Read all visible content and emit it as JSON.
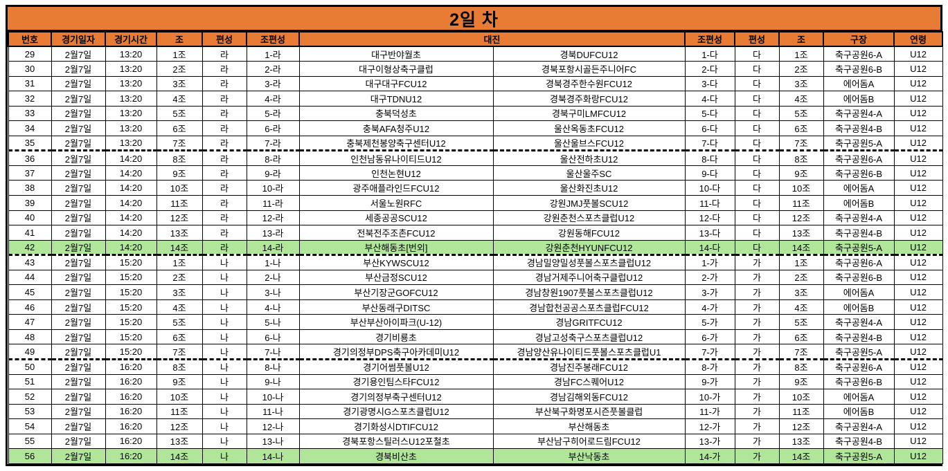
{
  "title": "2일 차",
  "colors": {
    "header_bg": "#E97C35",
    "highlight_bg": "#B1E69A"
  },
  "table": {
    "headers": [
      "번호",
      "경기일자",
      "경기시간",
      "조",
      "편성",
      "조편성",
      "대진",
      "조편성",
      "편성",
      "조",
      "구장",
      "연령"
    ],
    "rows": [
      {
        "no": "29",
        "date": "2월7일",
        "time": "13:20",
        "group_l": "1조",
        "div_l": "라",
        "gd_l": "1-라",
        "home": "대구반야월초",
        "away": "경북DUFCU12",
        "gd_r": "1-다",
        "div_r": "다",
        "group_r": "1조",
        "venue": "축구공원6-A",
        "age": "U12",
        "highlight": false
      },
      {
        "no": "30",
        "date": "2월7일",
        "time": "13:20",
        "group_l": "2조",
        "div_l": "라",
        "gd_l": "2-라",
        "home": "대구이형상축구클럽",
        "away": "경북포항시골든주니어FC",
        "gd_r": "2-다",
        "div_r": "다",
        "group_r": "2조",
        "venue": "축구공원6-B",
        "age": "U12",
        "highlight": false
      },
      {
        "no": "31",
        "date": "2월7일",
        "time": "13:20",
        "group_l": "3조",
        "div_l": "라",
        "gd_l": "3-라",
        "home": "대구대구FCU12",
        "away": "경북경주한수원FCU12",
        "gd_r": "3-다",
        "div_r": "다",
        "group_r": "3조",
        "venue": "에어돔A",
        "age": "U12",
        "highlight": false
      },
      {
        "no": "32",
        "date": "2월7일",
        "time": "13:20",
        "group_l": "4조",
        "div_l": "라",
        "gd_l": "4-라",
        "home": "대구TDNU12",
        "away": "경북경주화랑FCU12",
        "gd_r": "4-다",
        "div_r": "다",
        "group_r": "4조",
        "venue": "에어돔B",
        "age": "U12",
        "highlight": false
      },
      {
        "no": "33",
        "date": "2월7일",
        "time": "13:20",
        "group_l": "5조",
        "div_l": "라",
        "gd_l": "5-라",
        "home": "충북덕성초",
        "away": "경북구미LMFCU12",
        "gd_r": "5-다",
        "div_r": "다",
        "group_r": "5조",
        "venue": "축구공원4-A",
        "age": "U12",
        "highlight": false
      },
      {
        "no": "34",
        "date": "2월7일",
        "time": "13:20",
        "group_l": "6조",
        "div_l": "라",
        "gd_l": "6-라",
        "home": "충북AFA청주U12",
        "away": "울산옥동초FCU12",
        "gd_r": "6-다",
        "div_r": "다",
        "group_r": "6조",
        "venue": "축구공원4-B",
        "age": "U12",
        "highlight": false
      },
      {
        "no": "35",
        "date": "2월7일",
        "time": "13:20",
        "group_l": "7조",
        "div_l": "라",
        "gd_l": "7-라",
        "home": "충북제천봉양축구센터U12",
        "away": "울산울브스FCU12",
        "gd_r": "7-다",
        "div_r": "다",
        "group_r": "7조",
        "venue": "축구공원5-A",
        "age": "U12",
        "highlight": false
      },
      {
        "no": "36",
        "date": "2월7일",
        "time": "14:20",
        "group_l": "8조",
        "div_l": "라",
        "gd_l": "8-라",
        "home": "인천남동유나이티드U12",
        "away": "울산전하초U12",
        "gd_r": "8-다",
        "div_r": "다",
        "group_r": "8조",
        "venue": "축구공원6-A",
        "age": "U12",
        "highlight": false
      },
      {
        "no": "37",
        "date": "2월7일",
        "time": "14:20",
        "group_l": "9조",
        "div_l": "라",
        "gd_l": "9-라",
        "home": "인천논현U12",
        "away": "울산울주SC",
        "gd_r": "9-다",
        "div_r": "다",
        "group_r": "9조",
        "venue": "축구공원6-B",
        "age": "U12",
        "highlight": false
      },
      {
        "no": "38",
        "date": "2월7일",
        "time": "14:20",
        "group_l": "10조",
        "div_l": "라",
        "gd_l": "10-라",
        "home": "광주애플라인드FCU12",
        "away": "울산화진초U12",
        "gd_r": "10-다",
        "div_r": "다",
        "group_r": "10조",
        "venue": "에어돔A",
        "age": "U12",
        "highlight": false
      },
      {
        "no": "39",
        "date": "2월7일",
        "time": "14:20",
        "group_l": "11조",
        "div_l": "라",
        "gd_l": "11-라",
        "home": "서울노원RFC",
        "away": "강원JMJ풋볼SCU12",
        "gd_r": "11-다",
        "div_r": "다",
        "group_r": "11조",
        "venue": "에어돔B",
        "age": "U12",
        "highlight": false
      },
      {
        "no": "40",
        "date": "2월7일",
        "time": "14:20",
        "group_l": "12조",
        "div_l": "라",
        "gd_l": "12-라",
        "home": "세종공공SCU12",
        "away": "강원춘천스포츠클럽U12",
        "gd_r": "12-다",
        "div_r": "다",
        "group_r": "12조",
        "venue": "축구공원4-A",
        "age": "U12",
        "highlight": false
      },
      {
        "no": "41",
        "date": "2월7일",
        "time": "14:20",
        "group_l": "13조",
        "div_l": "라",
        "gd_l": "13-라",
        "home": "전북전주조촌FCU12",
        "away": "강원동해FCU12",
        "gd_r": "13-다",
        "div_r": "다",
        "group_r": "13조",
        "venue": "축구공원4-B",
        "age": "U12",
        "highlight": false
      },
      {
        "no": "42",
        "date": "2월7일",
        "time": "14:20",
        "group_l": "14조",
        "div_l": "라",
        "gd_l": "14-라",
        "home": "부산해동초[번외]",
        "away": "강원춘천HYUNFCU12",
        "gd_r": "14-다",
        "div_r": "다",
        "group_r": "14조",
        "venue": "축구공원5-A",
        "age": "U12",
        "highlight": true
      },
      {
        "no": "43",
        "date": "2월7일",
        "time": "15:20",
        "group_l": "1조",
        "div_l": "나",
        "gd_l": "1-나",
        "home": "부산KYWSCU12",
        "away": "경남밀양밀성풋볼스포츠클럽U12",
        "gd_r": "1-가",
        "div_r": "가",
        "group_r": "1조",
        "venue": "축구공원6-A",
        "age": "U12",
        "highlight": false
      },
      {
        "no": "44",
        "date": "2월7일",
        "time": "15:20",
        "group_l": "2조",
        "div_l": "나",
        "gd_l": "2-나",
        "home": "부산금정SCU12",
        "away": "경남거제주니어축구클럽U12",
        "gd_r": "2-가",
        "div_r": "가",
        "group_r": "2조",
        "venue": "축구공원6-B",
        "age": "U12",
        "highlight": false
      },
      {
        "no": "45",
        "date": "2월7일",
        "time": "15:20",
        "group_l": "3조",
        "div_l": "나",
        "gd_l": "3-나",
        "home": "부산기장군GOFCU12",
        "away": "경남창원1907풋볼스포츠클럽U12",
        "gd_r": "3-가",
        "div_r": "가",
        "group_r": "3조",
        "venue": "에어돔A",
        "age": "U12",
        "highlight": false
      },
      {
        "no": "46",
        "date": "2월7일",
        "time": "15:20",
        "group_l": "4조",
        "div_l": "나",
        "gd_l": "4-나",
        "home": "부산동래구DITSC",
        "away": "경남합천공공스포츠클럽FCU12",
        "gd_r": "4-가",
        "div_r": "가",
        "group_r": "4조",
        "venue": "에어돔B",
        "age": "U12",
        "highlight": false
      },
      {
        "no": "47",
        "date": "2월7일",
        "time": "15:20",
        "group_l": "5조",
        "div_l": "나",
        "gd_l": "5-나",
        "home": "부산부산아이파크(U-12)",
        "away": "경남GRITFCU12",
        "gd_r": "5-가",
        "div_r": "가",
        "group_r": "5조",
        "venue": "축구공원4-A",
        "age": "U12",
        "highlight": false
      },
      {
        "no": "48",
        "date": "2월7일",
        "time": "15:20",
        "group_l": "6조",
        "div_l": "나",
        "gd_l": "6-나",
        "home": "경기비룡초",
        "away": "경남고성축구스포츠클럽U12",
        "gd_r": "6-가",
        "div_r": "가",
        "group_r": "6조",
        "venue": "축구공원4-B",
        "age": "U12",
        "highlight": false
      },
      {
        "no": "49",
        "date": "2월7일",
        "time": "15:20",
        "group_l": "7조",
        "div_l": "나",
        "gd_l": "7-나",
        "home": "경기의정부DPS축구아카데미U12",
        "away": "경남양산유나이티드풋볼스포츠클럽U1",
        "gd_r": "7-가",
        "div_r": "가",
        "group_r": "7조",
        "venue": "축구공원5-A",
        "age": "U12",
        "highlight": false
      },
      {
        "no": "50",
        "date": "2월7일",
        "time": "16:20",
        "group_l": "8조",
        "div_l": "나",
        "gd_l": "8-나",
        "home": "경기어썸풋볼U12",
        "away": "경남진주봉래FCU12",
        "gd_r": "8-가",
        "div_r": "가",
        "group_r": "8조",
        "venue": "축구공원6-A",
        "age": "U12",
        "highlight": false
      },
      {
        "no": "51",
        "date": "2월7일",
        "time": "16:20",
        "group_l": "9조",
        "div_l": "나",
        "gd_l": "9-나",
        "home": "경기용인팀스타FCU12",
        "away": "경남FC스퀘어U12",
        "gd_r": "9-가",
        "div_r": "가",
        "group_r": "9조",
        "venue": "축구공원6-B",
        "age": "U12",
        "highlight": false
      },
      {
        "no": "52",
        "date": "2월7일",
        "time": "16:20",
        "group_l": "10조",
        "div_l": "나",
        "gd_l": "10-나",
        "home": "경기의정부축구센터U12",
        "away": "경남김해외동FCU12",
        "gd_r": "10-가",
        "div_r": "가",
        "group_r": "10조",
        "venue": "에어돔A",
        "age": "U12",
        "highlight": false
      },
      {
        "no": "53",
        "date": "2월7일",
        "time": "16:20",
        "group_l": "11조",
        "div_l": "나",
        "gd_l": "11-나",
        "home": "경기광명시G스포츠클럽U12",
        "away": "부산북구화명포시즌풋볼클럽",
        "gd_r": "11-가",
        "div_r": "가",
        "group_r": "11조",
        "venue": "에어돔B",
        "age": "U12",
        "highlight": false
      },
      {
        "no": "54",
        "date": "2월7일",
        "time": "16:20",
        "group_l": "12조",
        "div_l": "나",
        "gd_l": "12-나",
        "home": "경기화성시DTIFCU12",
        "away": "부산해동초",
        "gd_r": "12-가",
        "div_r": "가",
        "group_r": "12조",
        "venue": "축구공원4-A",
        "age": "U12",
        "highlight": false
      },
      {
        "no": "55",
        "date": "2월7일",
        "time": "16:20",
        "group_l": "13조",
        "div_l": "나",
        "gd_l": "13-나",
        "home": "경북포항스틸러스U12포철초",
        "away": "부산남구히어로드림FCU12",
        "gd_r": "13-가",
        "div_r": "가",
        "group_r": "13조",
        "venue": "축구공원4-B",
        "age": "U12",
        "highlight": false
      },
      {
        "no": "56",
        "date": "2월7일",
        "time": "16:20",
        "group_l": "14조",
        "div_l": "나",
        "gd_l": "14-나",
        "home": "경북비산초",
        "away": "부산낙동초",
        "gd_r": "14-가",
        "div_r": "가",
        "group_r": "14조",
        "venue": "축구공원5-A",
        "age": "U12",
        "highlight": true
      }
    ]
  }
}
